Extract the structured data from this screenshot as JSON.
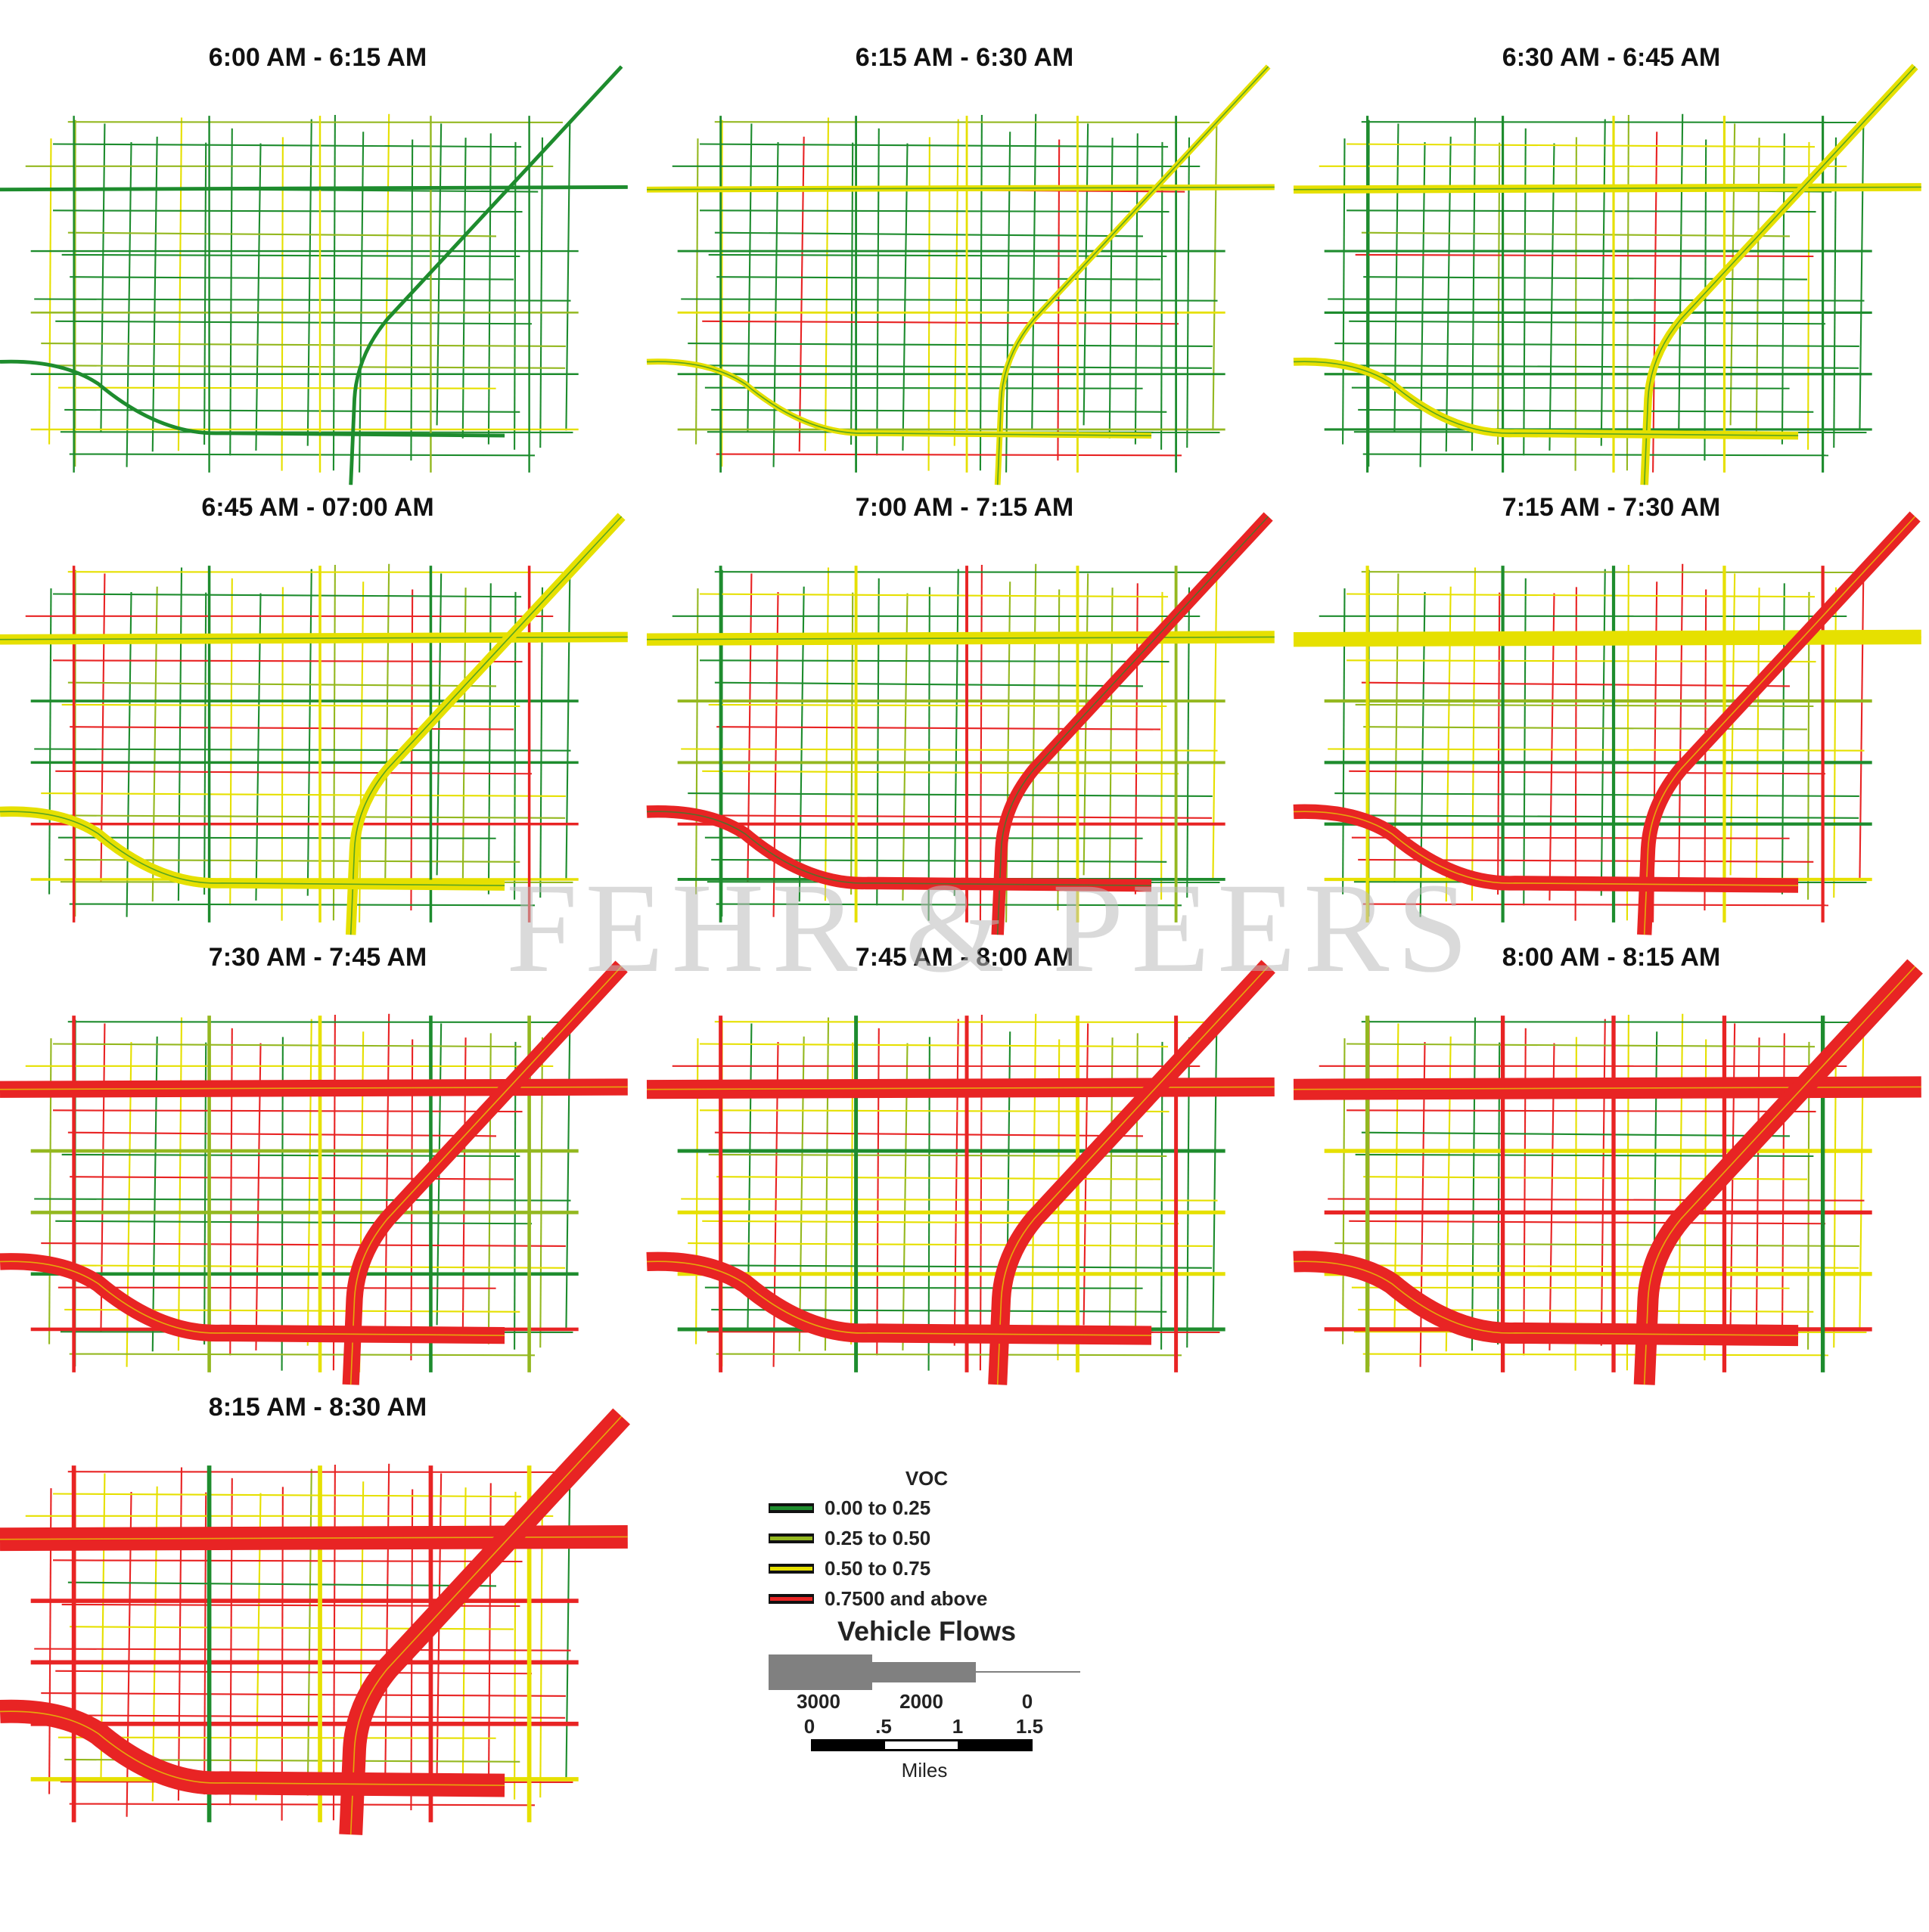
{
  "panels": [
    {
      "title": "6:00 AM - 6:15 AM"
    },
    {
      "title": "6:15 AM - 6:30 AM"
    },
    {
      "title": "6:30 AM - 6:45 AM"
    },
    {
      "title": "6:45 AM - 07:00 AM"
    },
    {
      "title": "7:00 AM - 7:15 AM"
    },
    {
      "title": "7:15 AM - 7:30 AM"
    },
    {
      "title": "7:30 AM - 7:45 AM"
    },
    {
      "title": "7:45 AM - 8:00 AM"
    },
    {
      "title": "8:00 AM - 8:15 AM"
    },
    {
      "title": "8:15 AM - 8:30 AM"
    }
  ],
  "watermark": "FEHR & PEERS",
  "legend": {
    "title": "VOC",
    "items": [
      {
        "label": "0.00 to 0.25",
        "color": "#1e8c2e"
      },
      {
        "label": "0.25 to 0.50",
        "color": "#94b820"
      },
      {
        "label": "0.50 to 0.75",
        "color": "#e6e000"
      },
      {
        "label": "0.7500 and above",
        "color": "#e82424"
      }
    ],
    "flows_title": "Vehicle Flows",
    "flow_labels": [
      "3000",
      "2000",
      "0"
    ],
    "scale_labels": [
      "0",
      ".5",
      "1",
      "1.5"
    ],
    "scale_unit": "Miles"
  }
}
